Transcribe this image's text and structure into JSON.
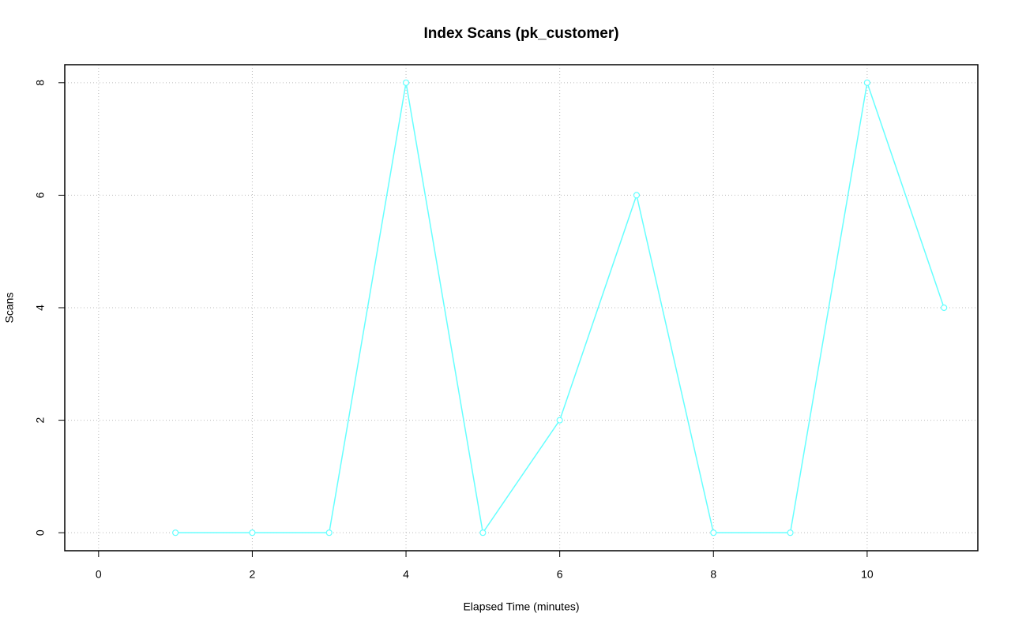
{
  "chart_data": {
    "type": "line",
    "title": "Index Scans (pk_customer)",
    "x_label": "Elapsed Time (minutes)",
    "y_label": "Scans",
    "x": [
      1,
      2,
      3,
      4,
      5,
      6,
      7,
      8,
      9,
      10,
      11
    ],
    "series": [
      {
        "name": "pk_customer",
        "color": "#66ffff",
        "values": [
          0,
          0,
          0,
          8,
          0,
          2,
          6,
          0,
          0,
          8,
          4
        ]
      }
    ],
    "xlim": [
      -0.44,
      11.44
    ],
    "xticks": [
      0,
      2,
      4,
      6,
      8,
      10
    ],
    "ylim": [
      -0.32,
      8.32
    ],
    "yticks": [
      0,
      2,
      4,
      6,
      8
    ],
    "grid": true
  }
}
